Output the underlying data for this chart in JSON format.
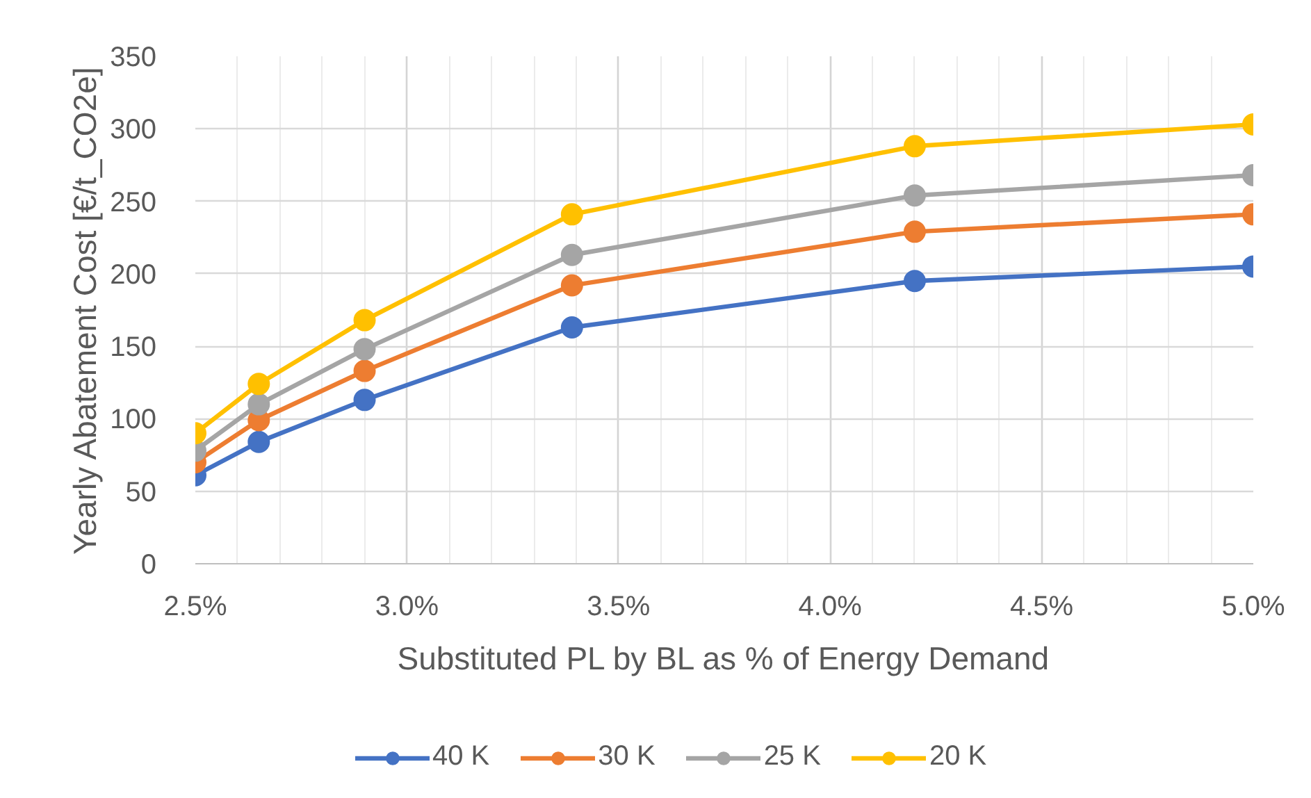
{
  "chart_data": {
    "type": "line",
    "xlabel": "Substituted PL by BL as % of Energy Demand",
    "ylabel": "Yearly Abatement Cost [€/t_CO2e]",
    "x": [
      2.5,
      2.65,
      2.9,
      3.39,
      4.2,
      5.0
    ],
    "series": [
      {
        "name": "40 K",
        "color": "#4472c4",
        "values": [
          61,
          84,
          113,
          163,
          195,
          205
        ]
      },
      {
        "name": "30 K",
        "color": "#ed7d31",
        "values": [
          70,
          99,
          133,
          192,
          229,
          241
        ]
      },
      {
        "name": "25 K",
        "color": "#a5a5a5",
        "values": [
          78,
          110,
          148,
          213,
          254,
          268
        ]
      },
      {
        "name": "20 K",
        "color": "#ffc000",
        "values": [
          90,
          124,
          168,
          241,
          288,
          303
        ]
      }
    ],
    "xlim": [
      2.5,
      5.0
    ],
    "ylim": [
      0,
      350
    ],
    "xticks": [
      {
        "value": 2.5,
        "label": "2.5%"
      },
      {
        "value": 2.6,
        "label": null
      },
      {
        "value": 2.7,
        "label": null
      },
      {
        "value": 2.8,
        "label": null
      },
      {
        "value": 2.9,
        "label": null
      },
      {
        "value": 3.0,
        "label": "3.0%"
      },
      {
        "value": 3.1,
        "label": null
      },
      {
        "value": 3.2,
        "label": null
      },
      {
        "value": 3.3,
        "label": null
      },
      {
        "value": 3.4,
        "label": null
      },
      {
        "value": 3.5,
        "label": "3.5%"
      },
      {
        "value": 3.6,
        "label": null
      },
      {
        "value": 3.7,
        "label": null
      },
      {
        "value": 3.8,
        "label": null
      },
      {
        "value": 3.9,
        "label": null
      },
      {
        "value": 4.0,
        "label": "4.0%"
      },
      {
        "value": 4.1,
        "label": null
      },
      {
        "value": 4.2,
        "label": null
      },
      {
        "value": 4.3,
        "label": null
      },
      {
        "value": 4.4,
        "label": null
      },
      {
        "value": 4.5,
        "label": "4.5%"
      },
      {
        "value": 4.6,
        "label": null
      },
      {
        "value": 4.7,
        "label": null
      },
      {
        "value": 4.8,
        "label": null
      },
      {
        "value": 4.9,
        "label": null
      },
      {
        "value": 5.0,
        "label": "5.0%"
      }
    ],
    "yticks": [
      0,
      50,
      100,
      150,
      200,
      250,
      300,
      350
    ],
    "grid": true,
    "legend": "bottom",
    "marker": "circle",
    "line_style": "solid"
  }
}
